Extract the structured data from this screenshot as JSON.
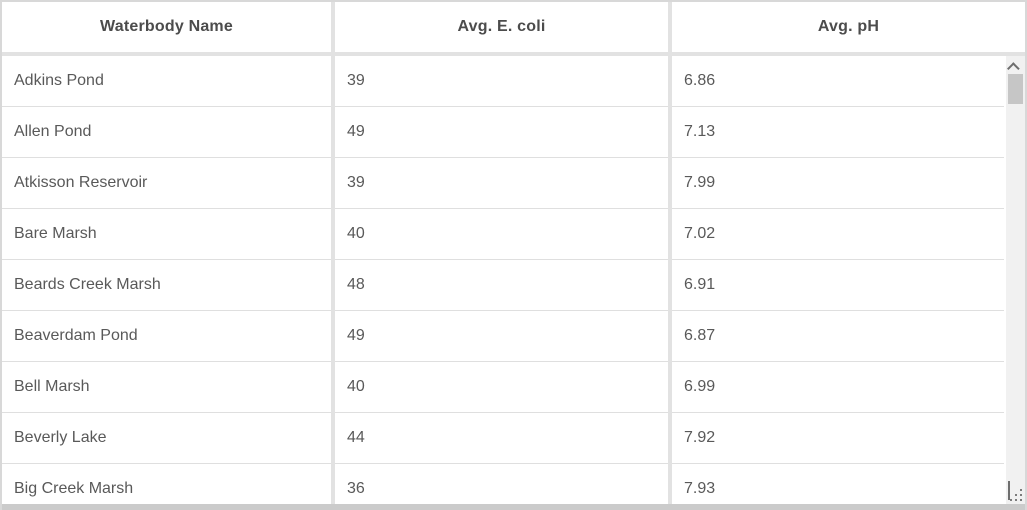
{
  "table": {
    "columns": [
      {
        "label": "Waterbody Name"
      },
      {
        "label": "Avg. E. coli"
      },
      {
        "label": "Avg. pH"
      }
    ],
    "rows": [
      {
        "name": "Adkins Pond",
        "ecoli": "39",
        "ph": "6.86"
      },
      {
        "name": "Allen Pond",
        "ecoli": "49",
        "ph": "7.13"
      },
      {
        "name": "Atkisson Reservoir",
        "ecoli": "39",
        "ph": "7.99"
      },
      {
        "name": "Bare Marsh",
        "ecoli": "40",
        "ph": "7.02"
      },
      {
        "name": "Beards Creek Marsh",
        "ecoli": "48",
        "ph": "6.91"
      },
      {
        "name": "Beaverdam Pond",
        "ecoli": "49",
        "ph": "6.87"
      },
      {
        "name": "Bell Marsh",
        "ecoli": "40",
        "ph": "6.99"
      },
      {
        "name": "Beverly Lake",
        "ecoli": "44",
        "ph": "7.92"
      },
      {
        "name": "Big Creek Marsh",
        "ecoli": "36",
        "ph": "7.93"
      }
    ]
  },
  "scrollbar": {
    "up_icon": "chevron-up-icon",
    "down_icon": "chevron-down-icon",
    "grip_icon": "resize-grip-icon"
  },
  "colors": {
    "header_text": "#4c4c4c",
    "body_text": "#595959",
    "grid_gap": "#e2e2e2",
    "row_divider": "#dfdfdf",
    "scroll_track": "#f1f1f1",
    "scroll_thumb": "#c6c6c6",
    "outer_border": "#d8d8d8"
  }
}
